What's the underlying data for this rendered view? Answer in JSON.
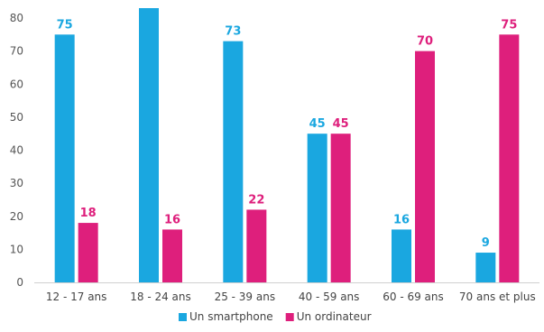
{
  "chart_data": {
    "type": "bar",
    "categories": [
      "12 - 17 ans",
      "18 - 24 ans",
      "25 - 39 ans",
      "40 - 59 ans",
      "60 - 69 ans",
      "70 ans et plus"
    ],
    "series": [
      {
        "name": "Un smartphone",
        "values": [
          75,
          83,
          73,
          45,
          16,
          9
        ],
        "labels": [
          "75",
          "",
          "73",
          "45",
          "16",
          "9"
        ],
        "color": "#1aa7e0"
      },
      {
        "name": "Un ordinateur",
        "values": [
          18,
          16,
          22,
          45,
          70,
          75
        ],
        "labels": [
          "18",
          "16",
          "22",
          "45",
          "70",
          "75"
        ],
        "color": "#de1f7c"
      }
    ],
    "yticks": [
      0,
      10,
      20,
      30,
      40,
      50,
      60,
      70,
      80
    ],
    "ylim": [
      0,
      85
    ],
    "grid": false,
    "legend_position": "bottom",
    "title": "",
    "xlabel": "",
    "ylabel": ""
  }
}
